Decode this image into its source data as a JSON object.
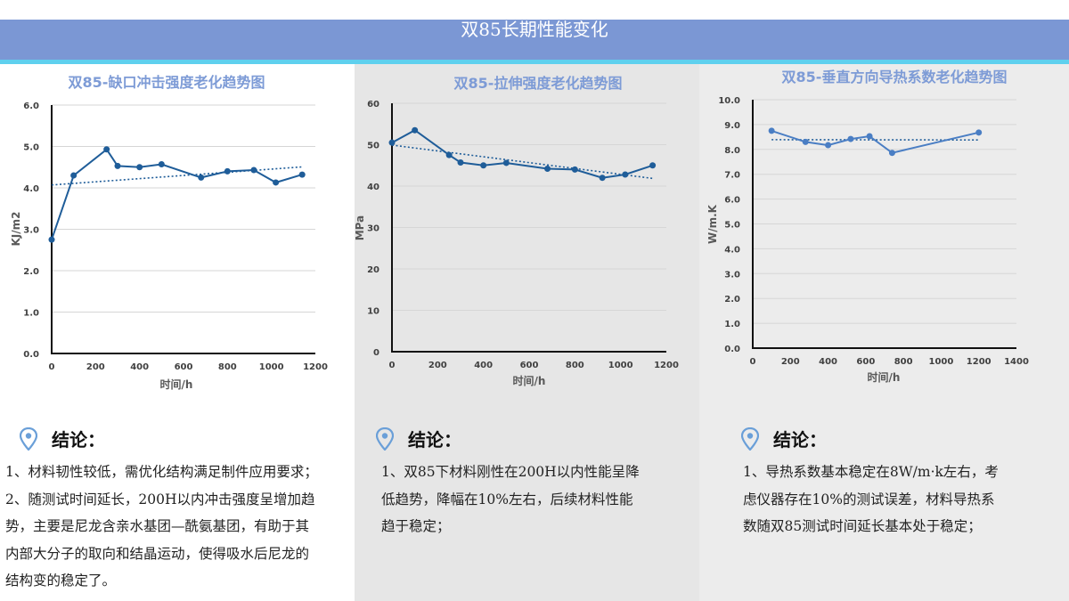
{
  "page_title": "双85长期性能变化",
  "colors": {
    "banner": "#7b97d4",
    "stripe": "#5fd0ee",
    "series": "#1f5d99",
    "title": "#7d9bd6"
  },
  "chart_data": [
    {
      "type": "line",
      "title": "双85-缺口冲击强度老化趋势图",
      "xlabel": "时间/h",
      "ylabel": "KJ/m2",
      "xlim": [
        0,
        1200
      ],
      "ylim": [
        0,
        6
      ],
      "xticks": [
        "0",
        "200",
        "400",
        "600",
        "800",
        "1000",
        "1200"
      ],
      "yticks": [
        "0.0",
        "1.0",
        "2.0",
        "3.0",
        "4.0",
        "5.0",
        "6.0"
      ],
      "trendline": "linear",
      "series": [
        {
          "name": "冲击强度",
          "x": [
            0,
            100,
            250,
            300,
            400,
            500,
            680,
            800,
            920,
            1020,
            1140
          ],
          "y": [
            2.75,
            4.3,
            4.93,
            4.53,
            4.5,
            4.57,
            4.25,
            4.4,
            4.43,
            4.13,
            4.32
          ]
        }
      ]
    },
    {
      "type": "line",
      "title": "双85-拉伸强度老化趋势图",
      "xlabel": "时间/h",
      "ylabel": "MPa",
      "xlim": [
        0,
        1200
      ],
      "ylim": [
        0,
        60
      ],
      "xticks": [
        "0",
        "200",
        "400",
        "600",
        "800",
        "1000",
        "1200"
      ],
      "yticks": [
        "0",
        "10",
        "20",
        "30",
        "40",
        "50",
        "60"
      ],
      "trendline": "linear",
      "series": [
        {
          "name": "拉伸强度",
          "x": [
            0,
            100,
            250,
            300,
            400,
            500,
            680,
            800,
            920,
            1020,
            1140
          ],
          "y": [
            50.5,
            53.5,
            47.5,
            45.7,
            45.0,
            45.6,
            44.2,
            44.0,
            42.0,
            42.8,
            45.0
          ]
        }
      ]
    },
    {
      "type": "line",
      "title": "双85-垂直方向导热系数老化趋势图",
      "xlabel": "时间/h",
      "ylabel": "W/m.K",
      "xlim": [
        0,
        1400
      ],
      "ylim": [
        0,
        10
      ],
      "xticks": [
        "0",
        "200",
        "400",
        "600",
        "800",
        "1000",
        "1200",
        "1400"
      ],
      "yticks": [
        "0.0",
        "1.0",
        "2.0",
        "3.0",
        "4.0",
        "5.0",
        "6.0",
        "7.0",
        "8.0",
        "9.0",
        "10.0"
      ],
      "trendline": "linear",
      "series": [
        {
          "name": "导热系数",
          "x": [
            100,
            280,
            400,
            520,
            620,
            740,
            1200
          ],
          "y": [
            8.75,
            8.3,
            8.17,
            8.42,
            8.53,
            7.86,
            8.68
          ]
        }
      ]
    }
  ],
  "conclusions": [
    {
      "heading": "结论：",
      "lines": [
        "1、材料韧性较低，需优化结构满足制件应用要求；",
        "2、随测试时间延长，200H以内冲击强度呈增加趋",
        "势，主要是尼龙含亲水基团—酰氨基团，有助于其",
        "内部大分子的取向和结晶运动，使得吸水后尼龙的",
        "结构变的稳定了。"
      ]
    },
    {
      "heading": "结论：",
      "lines": [
        "1、双85下材料刚性在200H以内性能呈降",
        "低趋势，降幅在10%左右，后续材料性能",
        "趋于稳定；"
      ]
    },
    {
      "heading": "结论：",
      "lines": [
        "1、导热系数基本稳定在8W/m·k左右，考",
        "虑仪器存在10%的测试误差，材料导热系",
        "数随双85测试时间延长基本处于稳定；"
      ]
    }
  ]
}
